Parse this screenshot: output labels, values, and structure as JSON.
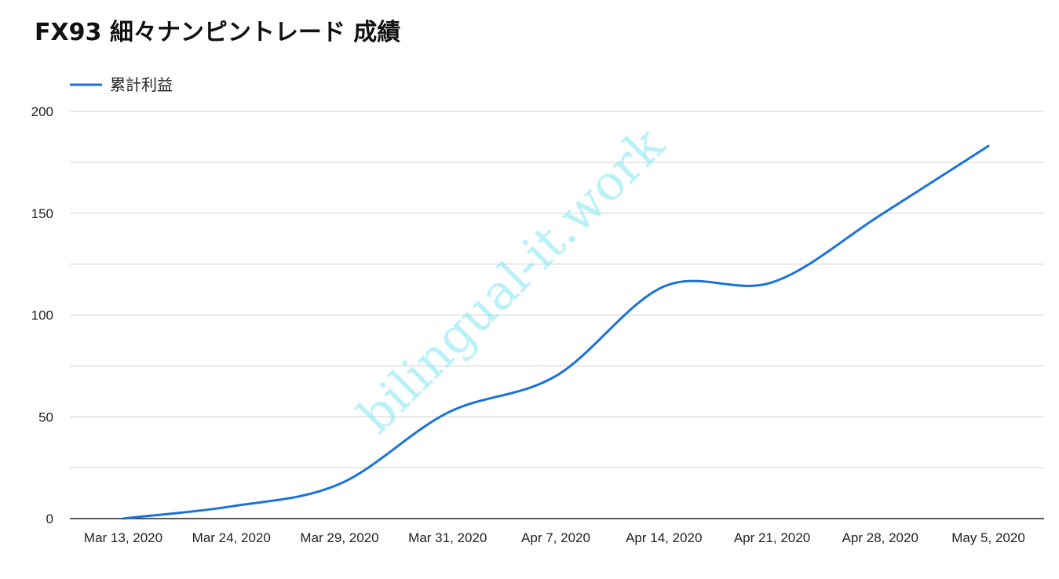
{
  "chart_data": {
    "type": "line",
    "title": "FX93 細々ナンピントレード 成績",
    "categories": [
      "Mar 13, 2020",
      "Mar 24, 2020",
      "Mar 29, 2020",
      "Mar 31, 2020",
      "Apr 7, 2020",
      "Apr 14, 2020",
      "Apr 21, 2020",
      "Apr 28, 2020",
      "May 5, 2020"
    ],
    "series": [
      {
        "name": "累計利益",
        "color": "#1a73d9",
        "values": [
          0,
          6,
          17,
          52,
          70,
          114,
          116,
          149,
          183
        ]
      }
    ],
    "ylim": [
      0,
      200
    ],
    "y_ticks": [
      0,
      50,
      100,
      150,
      200
    ],
    "grid": true,
    "legend_position": "top-left",
    "watermark": "bilingual-it.work"
  }
}
